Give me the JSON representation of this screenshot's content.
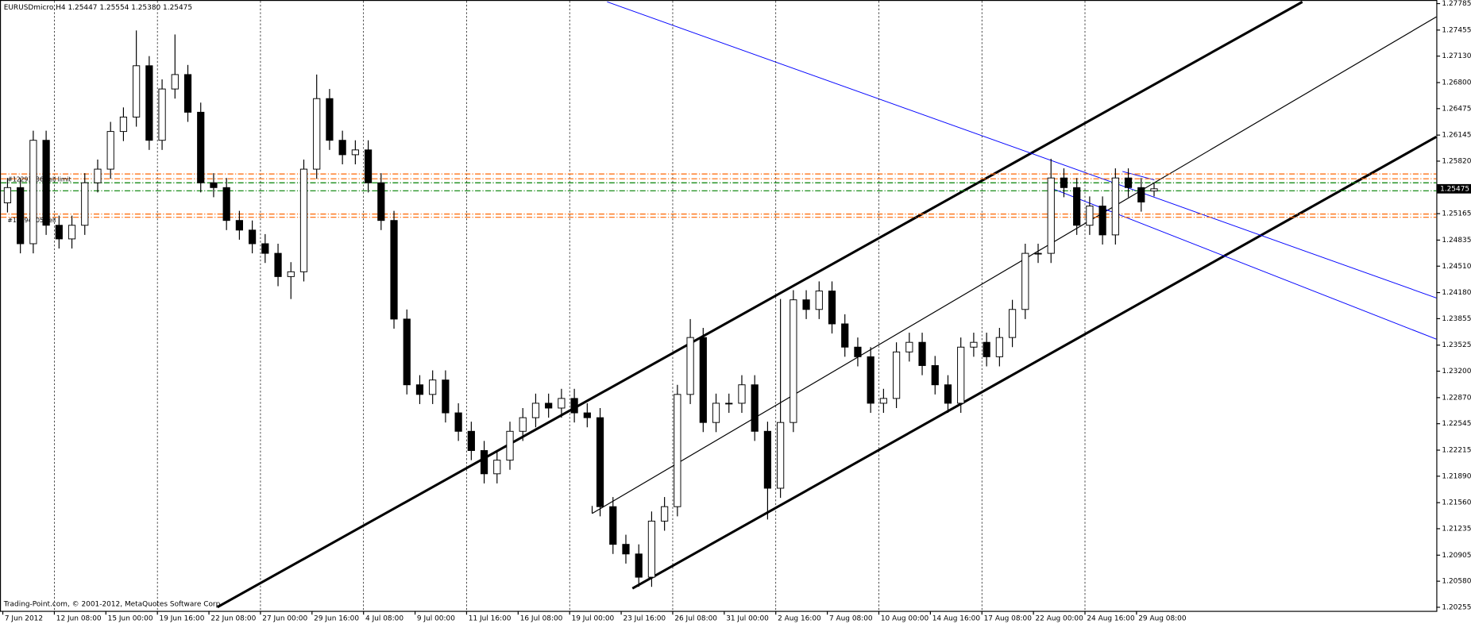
{
  "chart_data": {
    "type": "candlestick",
    "title": "EURUSDmicro,H4  1.25447 1.25554 1.25380 1.25475",
    "footer": "Trading-Point.com, © 2001-2012, MetaQuotes Software Corp.",
    "current_price_label": "1.25475",
    "current_price": 1.25475,
    "categories": [
      "7 Jun 2012",
      null,
      null,
      null,
      "12 Jun 08:00",
      null,
      null,
      null,
      "15 Jun 00:00",
      null,
      null,
      null,
      "19 Jun 16:00",
      null,
      null,
      null,
      "22 Jun 08:00",
      null,
      null,
      null,
      "27 Jun 00:00",
      null,
      null,
      null,
      "29 Jun 16:00",
      null,
      null,
      null,
      "4 Jul 08:00",
      null,
      null,
      null,
      "9 Jul 00:00",
      null,
      null,
      null,
      "11 Jul 16:00",
      null,
      null,
      null,
      "16 Jul 08:00",
      null,
      null,
      null,
      "19 Jul 00:00",
      null,
      null,
      null,
      "23 Jul 16:00",
      null,
      null,
      null,
      "26 Jul 08:00",
      null,
      null,
      null,
      "31 Jul 00:00",
      null,
      null,
      null,
      "2 Aug 16:00",
      null,
      null,
      null,
      "7 Aug 08:00",
      null,
      null,
      null,
      "10 Aug 00:00",
      null,
      null,
      null,
      "14 Aug 16:00",
      null,
      null,
      null,
      "17 Aug 08:00",
      null,
      null,
      null,
      "22 Aug 00:00",
      null,
      null,
      null,
      "24 Aug 16:00",
      null,
      null,
      null,
      "29 Aug 08:00",
      null
    ],
    "open": [
      1.253,
      1.2549,
      1.2479,
      1.2608,
      1.2502,
      1.2485,
      1.2502,
      1.2555,
      1.2572,
      1.2619,
      1.2637,
      1.2701,
      1.2608,
      1.2672,
      1.269,
      1.2643,
      1.2555,
      1.2549,
      1.2508,
      1.2496,
      1.2479,
      1.2467,
      1.2438,
      1.2444,
      1.2572,
      1.266,
      1.2608,
      1.259,
      1.2596,
      1.2555,
      1.2508,
      1.2385,
      1.2303,
      1.2291,
      1.2309,
      1.2268,
      1.2245,
      1.2221,
      1.2192,
      1.2209,
      1.2245,
      1.2262,
      1.228,
      1.2274,
      1.2286,
      1.2268,
      1.2262,
      1.2151,
      1.2104,
      1.2092,
      1.2063,
      1.2133,
      1.2151,
      1.2291,
      1.2362,
      1.2256,
      1.228,
      1.228,
      1.2303,
      1.2245,
      1.2174,
      1.2256,
      1.2409,
      1.2397,
      1.242,
      1.2379,
      1.235,
      1.2338,
      1.228,
      1.2286,
      1.2344,
      1.2356,
      1.2327,
      1.2303,
      1.228,
      1.235,
      1.2356,
      1.2338,
      1.2362,
      1.2397,
      1.2467,
      1.2467,
      1.2561,
      1.2549,
      1.2502,
      1.2526,
      1.249,
      1.2561,
      1.2549,
      1.25447
    ],
    "high": [
      1.2561,
      1.2561,
      1.262,
      1.262,
      1.2514,
      1.2514,
      1.2567,
      1.2584,
      1.2631,
      1.2649,
      1.2745,
      1.2713,
      1.2684,
      1.274,
      1.2702,
      1.2655,
      1.2567,
      1.2561,
      1.252,
      1.2508,
      1.2491,
      1.2479,
      1.2456,
      1.2584,
      1.269,
      1.2672,
      1.262,
      1.2608,
      1.2608,
      1.2567,
      1.252,
      1.2397,
      1.2315,
      1.2321,
      1.2321,
      1.228,
      1.2257,
      1.2233,
      1.2221,
      1.2257,
      1.2274,
      1.2292,
      1.2292,
      1.2298,
      1.2298,
      1.228,
      1.2274,
      1.2163,
      1.2116,
      1.2104,
      1.2145,
      1.2163,
      1.2303,
      1.2385,
      1.2374,
      1.2292,
      1.2292,
      1.2315,
      1.2315,
      1.2257,
      1.241,
      1.2421,
      1.2421,
      1.2432,
      1.2432,
      1.2391,
      1.2362,
      1.235,
      1.2298,
      1.2356,
      1.2368,
      1.2368,
      1.2339,
      1.2315,
      1.2362,
      1.2368,
      1.2368,
      1.2374,
      1.2409,
      1.2479,
      1.2479,
      1.2585,
      1.2573,
      1.2561,
      1.2538,
      1.2538,
      1.2573,
      1.2573,
      1.2561,
      1.25554
    ],
    "low": [
      1.2518,
      1.2467,
      1.2467,
      1.249,
      1.2473,
      1.2473,
      1.249,
      1.2543,
      1.256,
      1.2607,
      1.2625,
      1.2596,
      1.2596,
      1.266,
      1.2631,
      1.2543,
      1.2537,
      1.2496,
      1.2484,
      1.2467,
      1.2455,
      1.2426,
      1.241,
      1.2432,
      1.256,
      1.2596,
      1.2578,
      1.2578,
      1.2543,
      1.2496,
      1.2373,
      1.2291,
      1.2279,
      1.2279,
      1.2256,
      1.2233,
      1.2209,
      1.218,
      1.218,
      1.2197,
      1.2233,
      1.225,
      1.2262,
      1.2262,
      1.2256,
      1.225,
      1.2139,
      1.2092,
      1.208,
      1.2051,
      1.2051,
      1.2121,
      1.2139,
      1.2279,
      1.2244,
      1.2244,
      1.2268,
      1.2268,
      1.2233,
      1.2135,
      1.2162,
      1.2244,
      1.2385,
      1.2385,
      1.2367,
      1.2338,
      1.2326,
      1.2268,
      1.2268,
      1.2274,
      1.2332,
      1.2315,
      1.2291,
      1.2268,
      1.2268,
      1.2338,
      1.2326,
      1.2326,
      1.235,
      1.2385,
      1.2455,
      1.2455,
      1.2537,
      1.249,
      1.249,
      1.2478,
      1.2478,
      1.2537,
      1.2519,
      1.2538
    ],
    "close": [
      1.2549,
      1.2479,
      1.2608,
      1.2502,
      1.2485,
      1.2502,
      1.2555,
      1.2572,
      1.2619,
      1.2637,
      1.2701,
      1.2608,
      1.2672,
      1.269,
      1.2643,
      1.2555,
      1.2549,
      1.2508,
      1.2496,
      1.2479,
      1.2467,
      1.2438,
      1.2444,
      1.2572,
      1.266,
      1.2608,
      1.259,
      1.2596,
      1.2555,
      1.2508,
      1.2385,
      1.2303,
      1.2291,
      1.2309,
      1.2268,
      1.2245,
      1.2221,
      1.2192,
      1.2209,
      1.2245,
      1.2262,
      1.228,
      1.2274,
      1.2286,
      1.2268,
      1.2262,
      1.2151,
      1.2104,
      1.2092,
      1.2063,
      1.2133,
      1.2151,
      1.2291,
      1.2362,
      1.2256,
      1.228,
      1.228,
      1.2303,
      1.2245,
      1.2174,
      1.2256,
      1.2409,
      1.2397,
      1.242,
      1.2379,
      1.235,
      1.2338,
      1.228,
      1.2286,
      1.2344,
      1.2356,
      1.2327,
      1.2303,
      1.228,
      1.235,
      1.2356,
      1.2338,
      1.2362,
      1.2397,
      1.2467,
      1.2467,
      1.2561,
      1.2549,
      1.2502,
      1.2526,
      1.249,
      1.2561,
      1.2549,
      1.2531,
      1.25475
    ],
    "levels": [
      {
        "value": 1.2566,
        "color": "#ff6600"
      },
      {
        "value": 1.256,
        "color": "#ff6600"
      },
      {
        "value": 1.2555,
        "color": "#008000"
      },
      {
        "value": 1.2545,
        "color": "#008000"
      },
      {
        "value": 1.2516,
        "color": "#ff6600"
      },
      {
        "value": 1.2512,
        "color": "#ff6600"
      }
    ],
    "level_labels": [
      "#12293536 sell limit",
      "#12294705 sell"
    ],
    "ylim": [
      1.2021,
      1.2783
    ],
    "yticks": [
      1.27785,
      1.27455,
      {
        "value": 1.2713,
        "label": "1.27130"
      },
      {
        "value": 1.268,
        "label": "1.26800"
      },
      1.26475,
      1.26145,
      {
        "value": 1.2582,
        "label": "1.25820"
      },
      1.25165,
      1.24835,
      {
        "value": 1.2451,
        "label": "1.24510"
      },
      {
        "value": 1.2418,
        "label": "1.24180"
      },
      1.23855,
      1.23525,
      {
        "value": 1.232,
        "label": "1.23200"
      },
      {
        "value": 1.2287,
        "label": "1.22870"
      },
      1.22545,
      1.22215,
      {
        "value": 1.2189,
        "label": "1.21890"
      },
      {
        "value": 1.2156,
        "label": "1.21560"
      },
      1.21235,
      1.20905,
      {
        "value": 1.2058,
        "label": "1.20580"
      },
      1.20255
    ],
    "grid": true
  }
}
